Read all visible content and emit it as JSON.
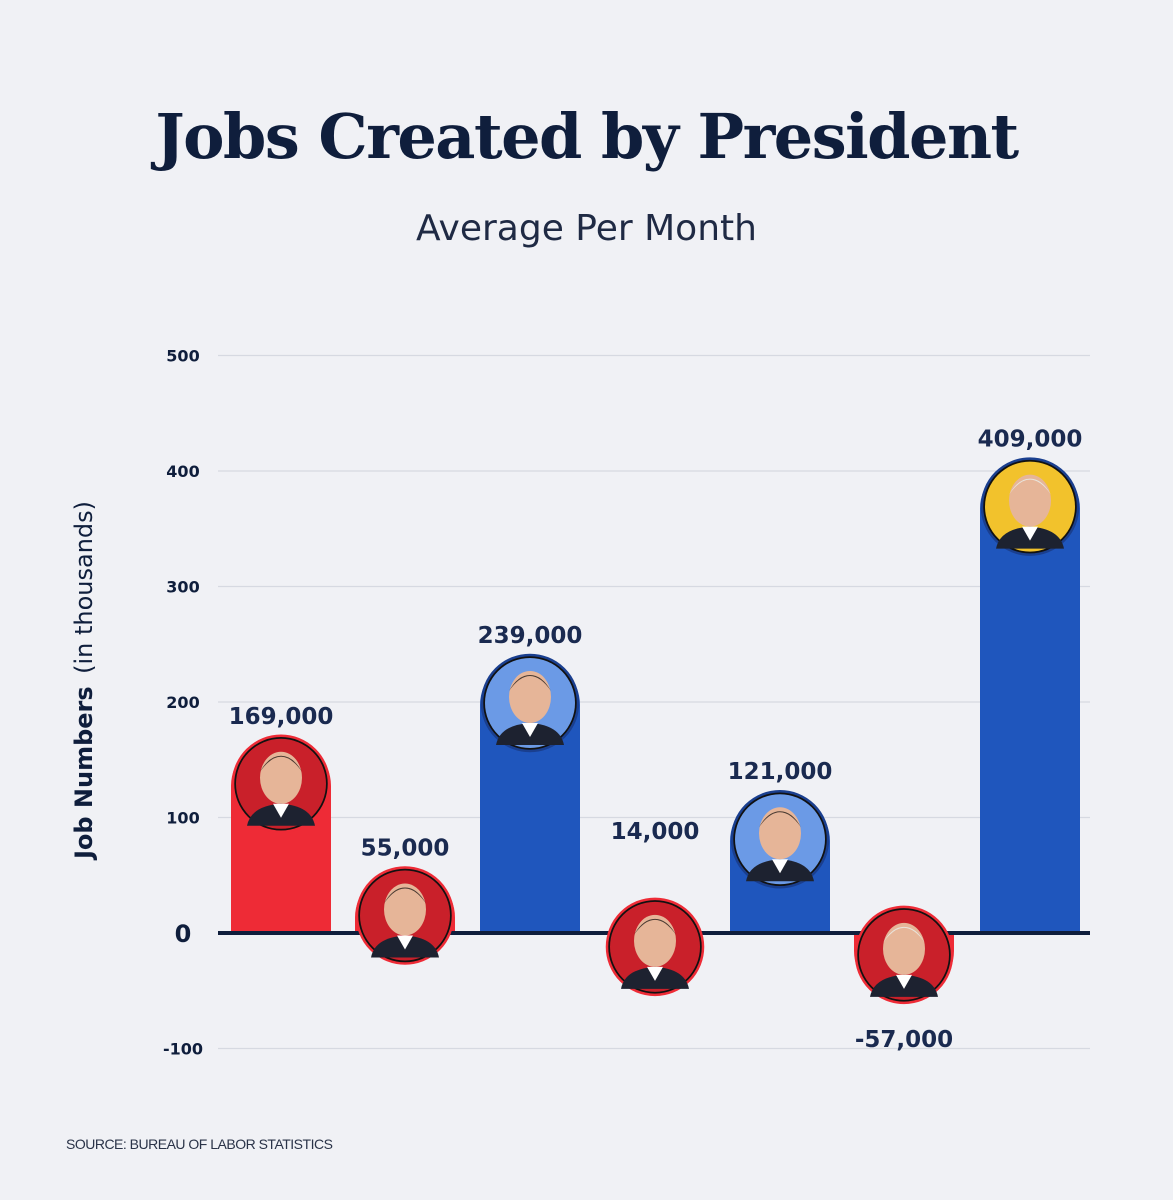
{
  "header": {
    "title": "Jobs Created by President",
    "subtitle": "Average Per Month"
  },
  "footer": {
    "source": "SOURCE: BUREAU OF LABOR STATISTICS"
  },
  "colors": {
    "red": "#ee2b36",
    "blue": "#1f56bd",
    "axis": "#0f1e3c",
    "grid": "#d6d9e1",
    "avatar_red_bg": "#c9202a",
    "avatar_blue_bg": "#6b9ae6",
    "avatar_gold_bg": "#f2c22c"
  },
  "chart_data": {
    "type": "bar",
    "title": "Jobs Created by President",
    "subtitle": "Average Per Month",
    "ylabel": "Job Numbers",
    "ylabel_suffix": "(in thousands)",
    "yticks": [
      500,
      400,
      300,
      200,
      100,
      0,
      -100
    ],
    "ylim": [
      -100,
      500
    ],
    "grid": true,
    "categories": [
      "",
      "",
      "",
      "",
      "",
      "",
      ""
    ],
    "values": [
      169,
      55,
      239,
      14,
      121,
      -57,
      409
    ],
    "value_labels": [
      "169,000",
      "55,000",
      "239,000",
      "14,000",
      "121,000",
      "-57,000",
      "409,000"
    ],
    "bar_colors": [
      "red",
      "red",
      "blue",
      "red",
      "blue",
      "red",
      "blue"
    ],
    "avatar_colors": [
      "avatar_red_bg",
      "avatar_red_bg",
      "avatar_blue_bg",
      "avatar_red_bg",
      "avatar_blue_bg",
      "avatar_red_bg",
      "avatar_gold_bg"
    ]
  }
}
